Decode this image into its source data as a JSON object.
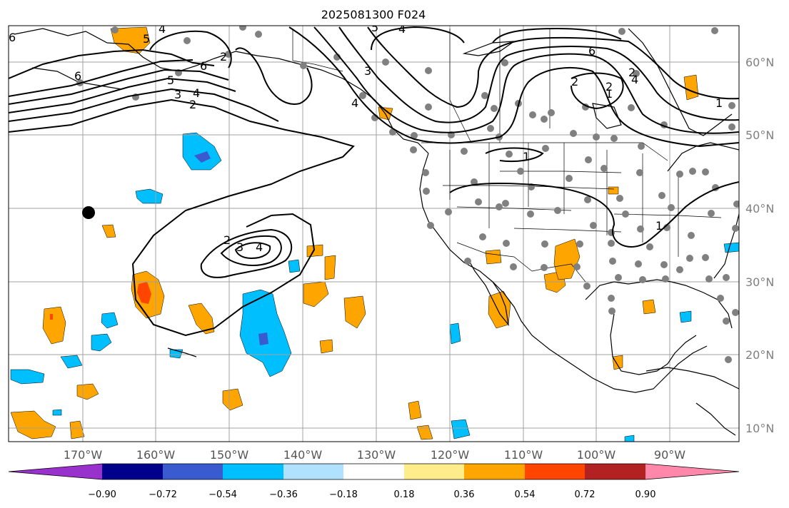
{
  "title": "2025081300 F024",
  "lat_labels": [
    "60°N",
    "50°N",
    "40°N",
    "30°N",
    "20°N",
    "10°N"
  ],
  "lon_labels": [
    "170°W",
    "160°W",
    "150°W",
    "140°W",
    "130°W",
    "120°W",
    "110°W",
    "100°W",
    "90°W"
  ],
  "colorbar": {
    "ticks": [
      "−0.90",
      "−0.72",
      "−0.54",
      "−0.36",
      "−0.18",
      "0.18",
      "0.36",
      "0.54",
      "0.72",
      "0.90"
    ],
    "colors": [
      "#9932cc",
      "#00008b",
      "#3a5bd0",
      "#00bfff",
      "#b0e2ff",
      "#ffffff",
      "#ffec8b",
      "#ffa500",
      "#ff4500",
      "#b22222",
      "#ff88aa"
    ]
  },
  "contour_labels": [
    "4",
    "5",
    "6",
    "6",
    "5",
    "4",
    "3",
    "2",
    "6",
    "2",
    "4",
    "5",
    "4",
    "3",
    "2",
    "6",
    "2",
    "1",
    "4",
    "2",
    "1",
    "1",
    "2",
    "3",
    "4",
    "1"
  ],
  "marker": {
    "type": "black-circle"
  },
  "station_color": "#808080"
}
